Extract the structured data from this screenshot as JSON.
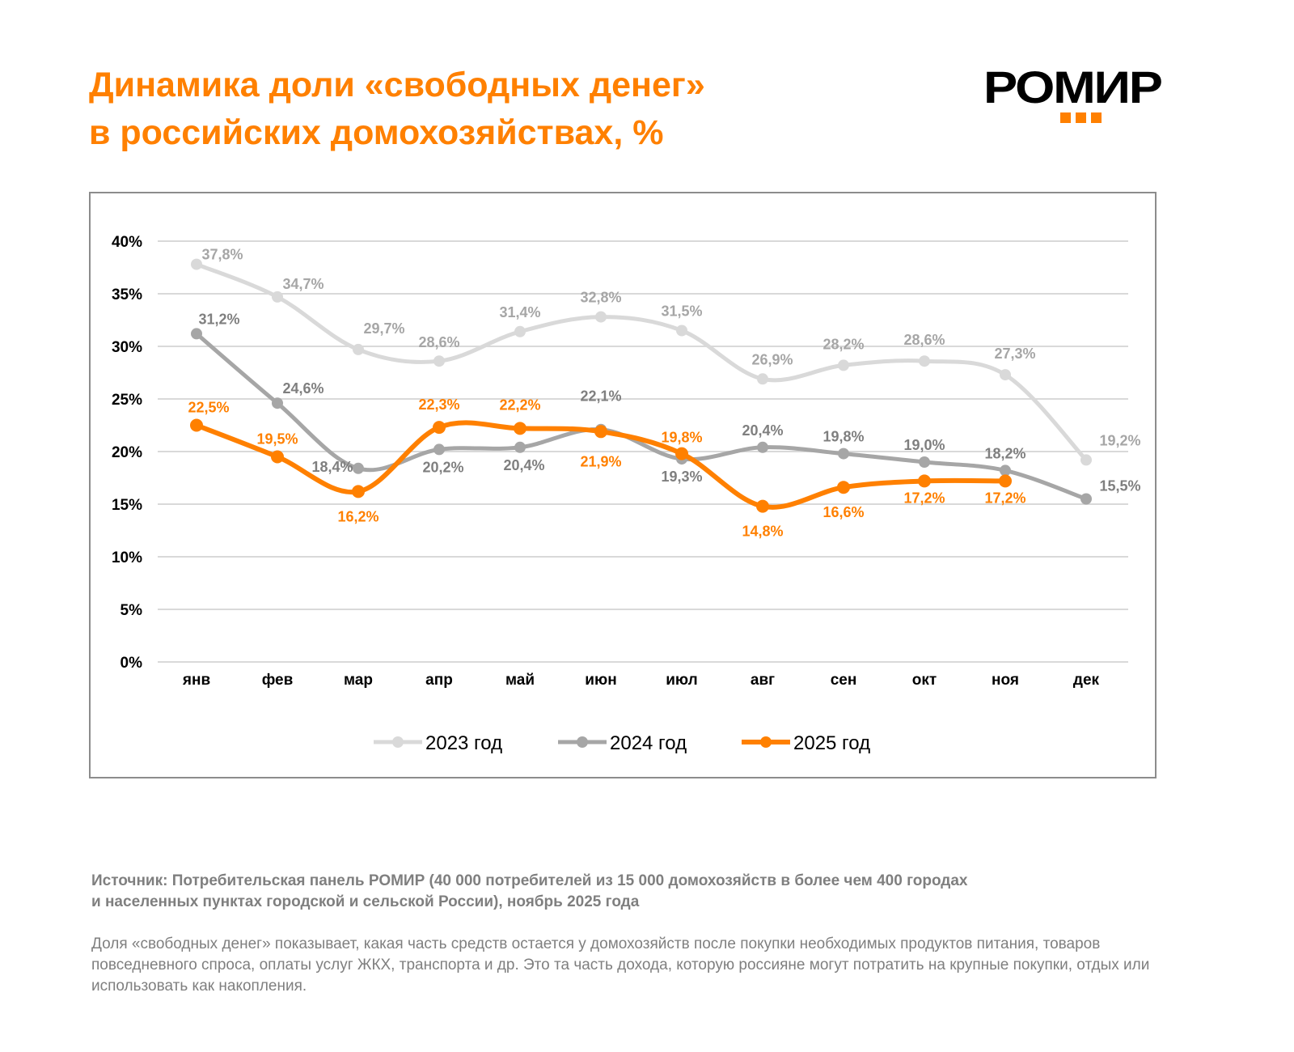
{
  "header": {
    "title_line1": "Динамика доли «свободных денег»",
    "title_line2": "в российских домохозяйствах, %",
    "logo_text": "РОМИР"
  },
  "chart_data": {
    "type": "line",
    "categories": [
      "янв",
      "фев",
      "мар",
      "апр",
      "май",
      "июн",
      "июл",
      "авг",
      "сен",
      "окт",
      "ноя",
      "дек"
    ],
    "yticks": [
      "0%",
      "5%",
      "10%",
      "15%",
      "20%",
      "25%",
      "30%",
      "35%",
      "40%"
    ],
    "ylim": [
      0,
      40
    ],
    "grid": true,
    "legend_placement": "bottom",
    "series": [
      {
        "name": "2023 год",
        "color": "#d9d9d9",
        "label_color": "#a6a6a6",
        "values": [
          37.8,
          34.7,
          29.7,
          28.6,
          31.4,
          32.8,
          31.5,
          26.9,
          28.2,
          28.6,
          27.3,
          19.2
        ],
        "labels": [
          "37,8%",
          "34,7%",
          "29,7%",
          "28,6%",
          "31,4%",
          "32,8%",
          "31,5%",
          "26,9%",
          "28,2%",
          "28,6%",
          "27,3%",
          "19,2%"
        ]
      },
      {
        "name": "2024 год",
        "color": "#a6a6a6",
        "label_color": "#7f7f7f",
        "values": [
          31.2,
          24.6,
          18.4,
          20.2,
          20.4,
          22.1,
          19.3,
          20.4,
          19.8,
          19.0,
          18.2,
          15.5
        ],
        "labels": [
          "31,2%",
          "24,6%",
          "18,4%",
          "20,2%",
          "20,4%",
          "22,1%",
          "19,3%",
          "20,4%",
          "19,8%",
          "19,0%",
          "18,2%",
          "15,5%"
        ]
      },
      {
        "name": "2025 год",
        "color": "#ff8000",
        "label_color": "#ff8000",
        "values": [
          22.5,
          19.5,
          16.2,
          22.3,
          22.2,
          21.9,
          19.8,
          14.8,
          16.6,
          17.2,
          17.2,
          null
        ],
        "labels": [
          "22,5%",
          "19,5%",
          "16,2%",
          "22,3%",
          "22,2%",
          "21,9%",
          "19,8%",
          "14,8%",
          "16,6%",
          "17,2%",
          "17,2%",
          null
        ]
      }
    ]
  },
  "footer": {
    "source_line1": "Источник: Потребительская панель РОМИР (40 000 потребителей из 15 000 домохозяйств в более чем 400 городах",
    "source_line2": "и населенных пунктах городской и сельской России), ноябрь 2025 года",
    "note": "Доля «свободных денег» показывает, какая часть средств остается у домохозяйств после покупки необходимых продуктов питания, товаров повседневного спроса, оплаты услуг ЖКХ, транспорта и др. Это та часть дохода, которую россияне могут потратить на крупные покупки, отдых или использовать как накопления."
  }
}
